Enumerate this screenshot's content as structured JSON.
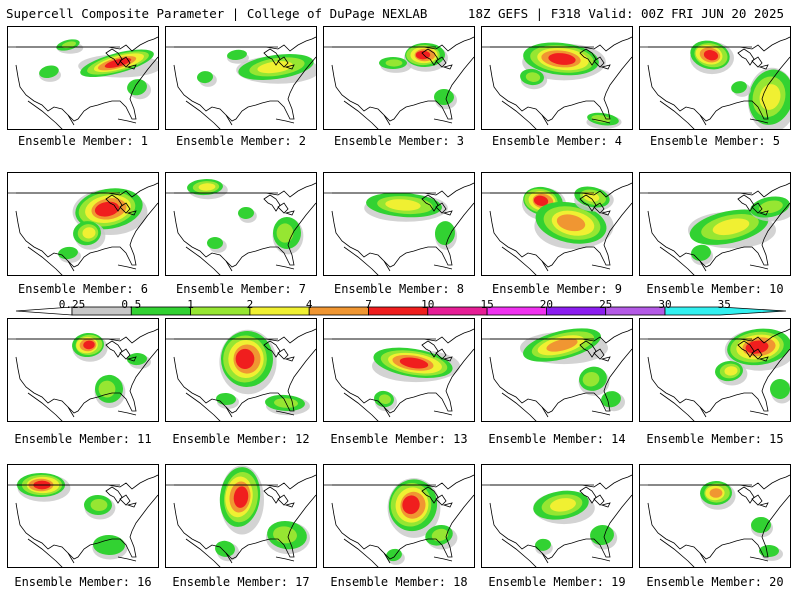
{
  "header": {
    "title_left": "Supercell Composite Parameter | College of DuPage NEXLAB",
    "title_right": "18Z GEFS | F318 Valid: 00Z FRI JUN 20 2025"
  },
  "colorbar": {
    "ticks": [
      "0.25",
      "0.5",
      "1",
      "2",
      "4",
      "7",
      "10",
      "15",
      "20",
      "25",
      "30",
      "35"
    ],
    "colors": [
      "#c8c8c8",
      "#32d232",
      "#96e632",
      "#f0f032",
      "#f09632",
      "#f01e1e",
      "#e61e96",
      "#f032f0",
      "#8c1ef0",
      "#b45ae6",
      "#32f0f0"
    ]
  },
  "panels": [
    {
      "label": "Ensemble Member: 1"
    },
    {
      "label": "Ensemble Member: 2"
    },
    {
      "label": "Ensemble Member: 3"
    },
    {
      "label": "Ensemble Member: 4"
    },
    {
      "label": "Ensemble Member: 5"
    },
    {
      "label": "Ensemble Member: 6"
    },
    {
      "label": "Ensemble Member: 7"
    },
    {
      "label": "Ensemble Member: 8"
    },
    {
      "label": "Ensemble Member: 9"
    },
    {
      "label": "Ensemble Member: 10"
    },
    {
      "label": "Ensemble Member: 11"
    },
    {
      "label": "Ensemble Member: 12"
    },
    {
      "label": "Ensemble Member: 13"
    },
    {
      "label": "Ensemble Member: 14"
    },
    {
      "label": "Ensemble Member: 15"
    },
    {
      "label": "Ensemble Member: 16"
    },
    {
      "label": "Ensemble Member: 17"
    },
    {
      "label": "Ensemble Member: 18"
    },
    {
      "label": "Ensemble Member: 19"
    },
    {
      "label": "Ensemble Member: 20"
    }
  ]
}
